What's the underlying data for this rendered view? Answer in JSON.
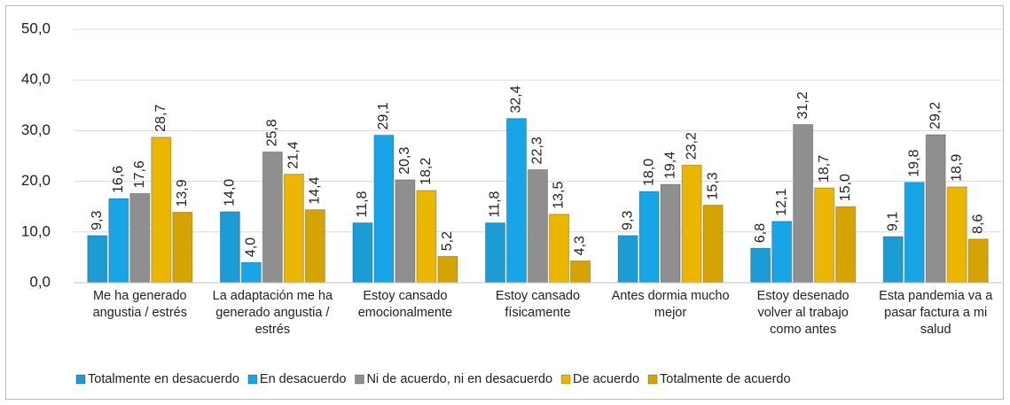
{
  "chart_data": {
    "type": "bar",
    "categories": [
      "Me ha generado angustia / estrés",
      "La adaptación me ha generado angustia / estrés",
      "Estoy cansado emocionalmente",
      "Estoy cansado físicamente",
      "Antes dormia mucho mejor",
      "Estoy desenado volver al trabajo como antes",
      "Esta pandemia va a pasar factura a mi salud"
    ],
    "series": [
      {
        "name": "Totalmente en desacuerdo",
        "color": "#1b9cd4",
        "values": [
          9.3,
          14.0,
          11.8,
          11.8,
          9.3,
          6.8,
          9.1
        ],
        "value_labels": [
          "9,3",
          "14,0",
          "11,8",
          "11,8",
          "9,3",
          "6,8",
          "9,1"
        ]
      },
      {
        "name": "En desacuerdo",
        "color": "#17a5e8",
        "values": [
          16.6,
          4.0,
          29.1,
          32.4,
          18.0,
          12.1,
          19.8
        ],
        "value_labels": [
          "16,6",
          "4,0",
          "29,1",
          "32,4",
          "18,0",
          "12,1",
          "19,8"
        ]
      },
      {
        "name": "Ni de acuerdo, ni en desacuerdo",
        "color": "#8f8f8f",
        "values": [
          17.6,
          25.8,
          20.3,
          22.3,
          19.4,
          31.2,
          29.2
        ],
        "value_labels": [
          "17,6",
          "25,8",
          "20,3",
          "22,3",
          "19,4",
          "31,2",
          "29,2"
        ]
      },
      {
        "name": "De acuerdo",
        "color": "#eab600",
        "values": [
          28.7,
          21.4,
          18.2,
          13.5,
          23.2,
          18.7,
          18.9
        ],
        "value_labels": [
          "28,7",
          "21,4",
          "18,2",
          "13,5",
          "23,2",
          "18,7",
          "18,9"
        ]
      },
      {
        "name": "Totalmente de acuerdo",
        "color": "#d6a400",
        "values": [
          13.9,
          14.4,
          5.2,
          4.3,
          15.3,
          15.0,
          8.6
        ],
        "value_labels": [
          "13,9",
          "14,4",
          "5,2",
          "4,3",
          "15,3",
          "15,0",
          "8,6"
        ]
      }
    ],
    "ylim": [
      0,
      50
    ],
    "yticks": [
      {
        "value": 0,
        "label": "0,0"
      },
      {
        "value": 10,
        "label": "10,0"
      },
      {
        "value": 20,
        "label": "20,0"
      },
      {
        "value": 30,
        "label": "30,0"
      },
      {
        "value": 40,
        "label": "40,0"
      },
      {
        "value": 50,
        "label": "50,0"
      }
    ],
    "grid": true,
    "legend": "bottom"
  }
}
